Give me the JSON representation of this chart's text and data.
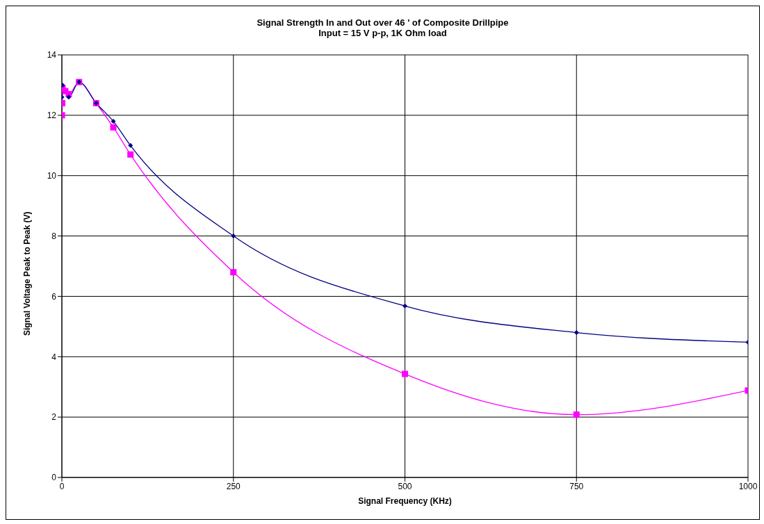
{
  "chart_data": {
    "type": "line",
    "title": "Signal Strength In and Out over 46 ' of Composite Drillpipe",
    "subtitle": "Input = 15 V p-p, 1K Ohm load",
    "xlabel": "Signal Frequency (KHz)",
    "ylabel": "Signal Voltage Peak to Peak (V)",
    "xlim": [
      0,
      1000
    ],
    "xticks": [
      0,
      250,
      500,
      750,
      1000
    ],
    "ylim": [
      0,
      14
    ],
    "yticks": [
      0,
      2,
      4,
      6,
      8,
      10,
      12,
      14
    ],
    "grid": true,
    "legend": false,
    "series": [
      {
        "color": "#000080",
        "marker": "diamond",
        "x": [
          0.1,
          1,
          10,
          25,
          50,
          75,
          100,
          250,
          500,
          750,
          1000
        ],
        "values": [
          12.6,
          13.0,
          12.6,
          13.1,
          12.4,
          11.8,
          11.0,
          8.0,
          5.68,
          4.8,
          4.48
        ]
      },
      {
        "color": "#ff00ff",
        "marker": "square",
        "x": [
          0.1,
          0.5,
          1,
          5,
          10,
          25,
          50,
          75,
          100,
          250,
          500,
          750,
          1000
        ],
        "values": [
          12.0,
          12.4,
          12.9,
          12.8,
          12.7,
          13.1,
          12.4,
          11.6,
          10.7,
          6.8,
          3.43,
          2.08,
          2.88
        ]
      }
    ]
  }
}
